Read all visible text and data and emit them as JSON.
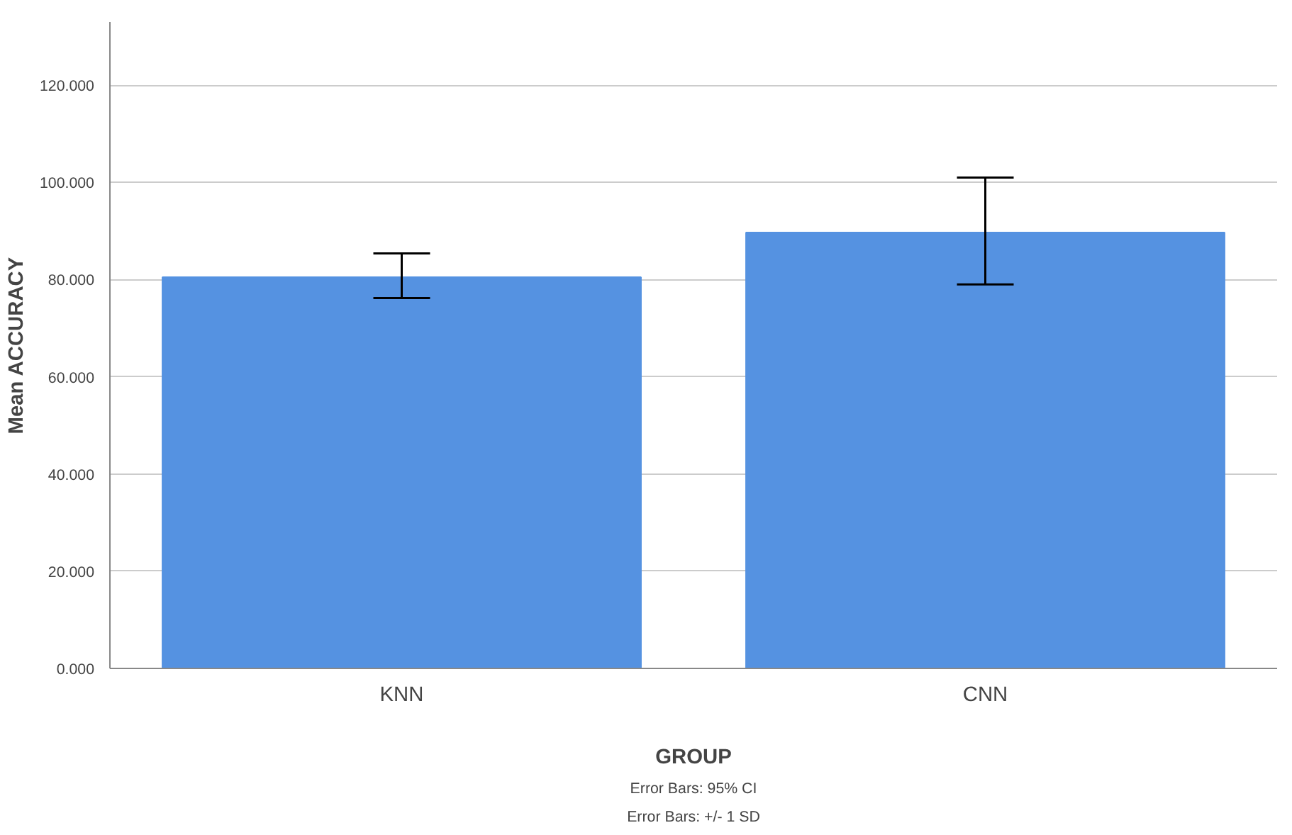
{
  "chart_data": {
    "type": "bar",
    "xlabel": "GROUP",
    "ylabel": "Mean ACCURACY",
    "categories": [
      "KNN",
      "CNN"
    ],
    "values": [
      80.5,
      89.7
    ],
    "errors": [
      [
        76.2,
        85.4
      ],
      [
        79.0,
        101.0
      ]
    ],
    "color": "#5592e1",
    "ylim": [
      0,
      133
    ],
    "yticks": [
      {
        "value": 0,
        "label": "0.000"
      },
      {
        "value": 20,
        "label": "20.000"
      },
      {
        "value": 40,
        "label": "40.000"
      },
      {
        "value": 60,
        "label": "60.000"
      },
      {
        "value": 80,
        "label": "80.000"
      },
      {
        "value": 100,
        "label": "100.000"
      },
      {
        "value": 120,
        "label": "120.000"
      }
    ],
    "grid": "y",
    "annotations": [
      "Error Bars: 95% CI",
      "Error Bars: +/- 1 SD"
    ]
  }
}
